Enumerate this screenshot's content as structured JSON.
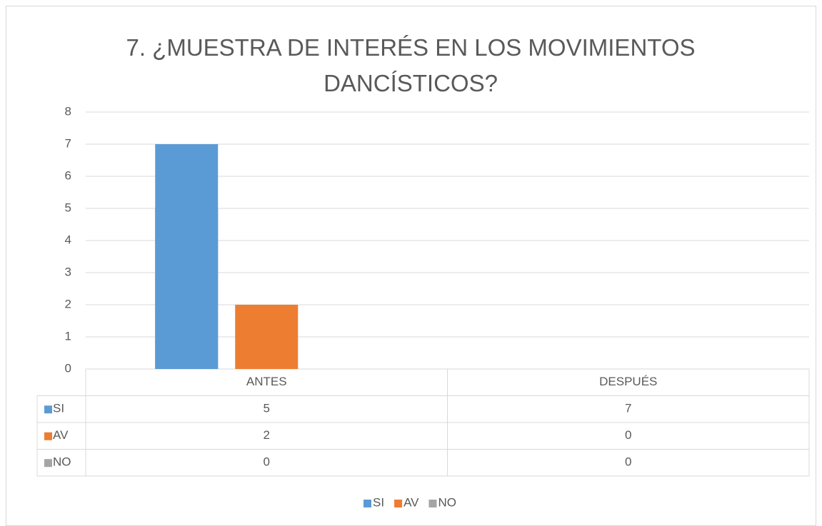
{
  "chart_data": {
    "type": "bar",
    "title": "7. ¿MUESTRA DE INTERÉS EN LOS MOVIMIENTOS DANCÍSTICOS?",
    "categories": [
      "ANTES",
      "DESPUÉS"
    ],
    "series": [
      {
        "name": "SI",
        "color": "#5b9bd5",
        "values": [
          5,
          7
        ]
      },
      {
        "name": "AV",
        "color": "#ed7d31",
        "values": [
          2,
          0
        ]
      },
      {
        "name": "NO",
        "color": "#a5a5a5",
        "values": [
          0,
          0
        ]
      }
    ],
    "ylim": [
      0,
      8
    ],
    "yticks": [
      0,
      1,
      2,
      3,
      4,
      5,
      6,
      7,
      8
    ],
    "grid": true,
    "legend": "bottom"
  }
}
